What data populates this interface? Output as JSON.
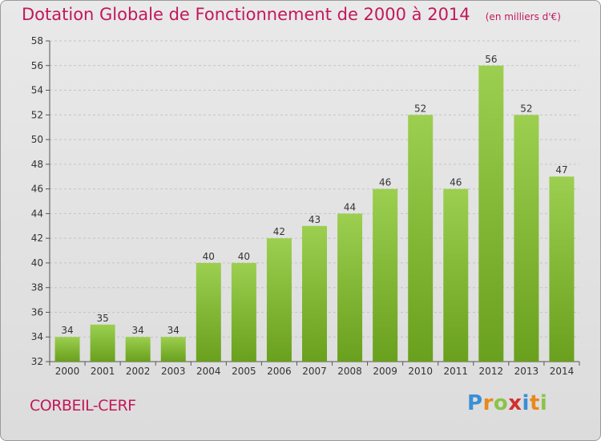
{
  "title": "Dotation Globale de Fonctionnement de 2000 à 2014",
  "unit": "(en milliers d'€)",
  "commune": "CORBEIL-CERF",
  "logo": {
    "letters": [
      "P",
      "r",
      "o",
      "x",
      "i",
      "t",
      "i"
    ],
    "colors": [
      "#3a8fd6",
      "#e8891d",
      "#8bc34a",
      "#d32f2f",
      "#3a8fd6",
      "#e8891d",
      "#8bc34a"
    ]
  },
  "chart_data": {
    "type": "bar",
    "categories": [
      "2000",
      "2001",
      "2002",
      "2003",
      "2004",
      "2005",
      "2006",
      "2007",
      "2008",
      "2009",
      "2010",
      "2011",
      "2012",
      "2013",
      "2014"
    ],
    "values": [
      34,
      35,
      34,
      34,
      40,
      40,
      42,
      43,
      44,
      46,
      52,
      46,
      56,
      52,
      47
    ],
    "ylim": [
      32,
      58
    ],
    "yticks": [
      32,
      34,
      36,
      38,
      40,
      42,
      44,
      46,
      48,
      50,
      52,
      54,
      56,
      58
    ],
    "grid": true,
    "bar_color": "#8bc34a"
  }
}
